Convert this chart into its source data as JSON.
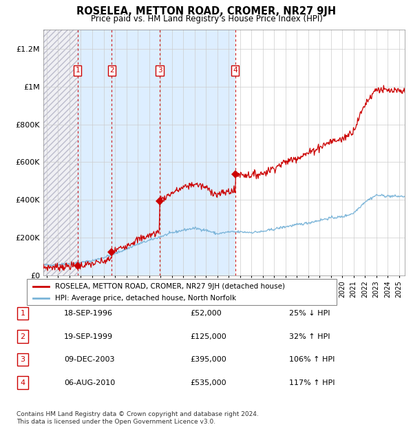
{
  "title": "ROSELEA, METTON ROAD, CROMER, NR27 9JH",
  "subtitle": "Price paid vs. HM Land Registry's House Price Index (HPI)",
  "ylim": [
    0,
    1300000
  ],
  "yticks": [
    0,
    200000,
    400000,
    600000,
    800000,
    1000000,
    1200000
  ],
  "ytick_labels": [
    "£0",
    "£200K",
    "£400K",
    "£600K",
    "£800K",
    "£1M",
    "£1.2M"
  ],
  "xlim_start": 1993.7,
  "xlim_end": 2025.5,
  "transactions": [
    {
      "num": 1,
      "date_x": 1996.72,
      "price": 52000,
      "label": "1",
      "hpi_rel": "25% ↓ HPI",
      "date_str": "18-SEP-1996",
      "price_str": "£52,000"
    },
    {
      "num": 2,
      "date_x": 1999.72,
      "price": 125000,
      "label": "2",
      "hpi_rel": "32% ↑ HPI",
      "date_str": "19-SEP-1999",
      "price_str": "£125,000"
    },
    {
      "num": 3,
      "date_x": 2003.94,
      "price": 395000,
      "label": "3",
      "hpi_rel": "106% ↑ HPI",
      "date_str": "09-DEC-2003",
      "price_str": "£395,000"
    },
    {
      "num": 4,
      "date_x": 2010.59,
      "price": 535000,
      "label": "4",
      "hpi_rel": "117% ↑ HPI",
      "date_str": "06-AUG-2010",
      "price_str": "£535,000"
    }
  ],
  "legend_line1": "ROSELEA, METTON ROAD, CROMER, NR27 9JH (detached house)",
  "legend_line2": "HPI: Average price, detached house, North Norfolk",
  "footnote": "Contains HM Land Registry data © Crown copyright and database right 2024.\nThis data is licensed under the Open Government Licence v3.0.",
  "hpi_color": "#7ab4d8",
  "price_color": "#cc0000",
  "shaded_region_color": "#ddeeff",
  "background_color": "#ffffff",
  "grid_color": "#cccccc"
}
